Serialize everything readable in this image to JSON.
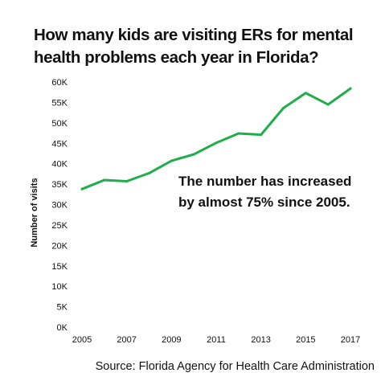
{
  "title": "How many kids are visiting ERs for mental health problems each year in Florida?",
  "source": "Source: Florida Agency for Health Care Administration",
  "chart_data": {
    "type": "line",
    "title": "How many kids are visiting ERs for mental health problems each year in Florida?",
    "xlabel": "",
    "ylabel": "Number of visits",
    "x": [
      2005,
      2006,
      2007,
      2008,
      2009,
      2010,
      2011,
      2012,
      2013,
      2014,
      2015,
      2016,
      2017
    ],
    "series": [
      {
        "name": "",
        "values": [
          33800,
          36000,
          35700,
          37700,
          40700,
          42300,
          45100,
          47400,
          47100,
          53600,
          57300,
          54500,
          58400
        ]
      }
    ],
    "ylim": [
      0,
      60000
    ],
    "yticks": [
      0,
      5000,
      10000,
      15000,
      20000,
      25000,
      30000,
      35000,
      40000,
      45000,
      50000,
      55000,
      60000
    ],
    "ytick_labels": [
      "0K",
      "5K",
      "10K",
      "15K",
      "20K",
      "25K",
      "30K",
      "35K",
      "40K",
      "45K",
      "50K",
      "55K",
      "60K"
    ],
    "xticks": [
      2005,
      2007,
      2009,
      2011,
      2013,
      2015,
      2017
    ],
    "xtick_labels": [
      "2005",
      "2007",
      "2009",
      "2011",
      "2013",
      "2015",
      "2017"
    ],
    "annotation": [
      "The number has increased",
      "by almost 75% since 2005."
    ],
    "line_color": "#1fae4b",
    "grid": false,
    "legend": "none"
  }
}
